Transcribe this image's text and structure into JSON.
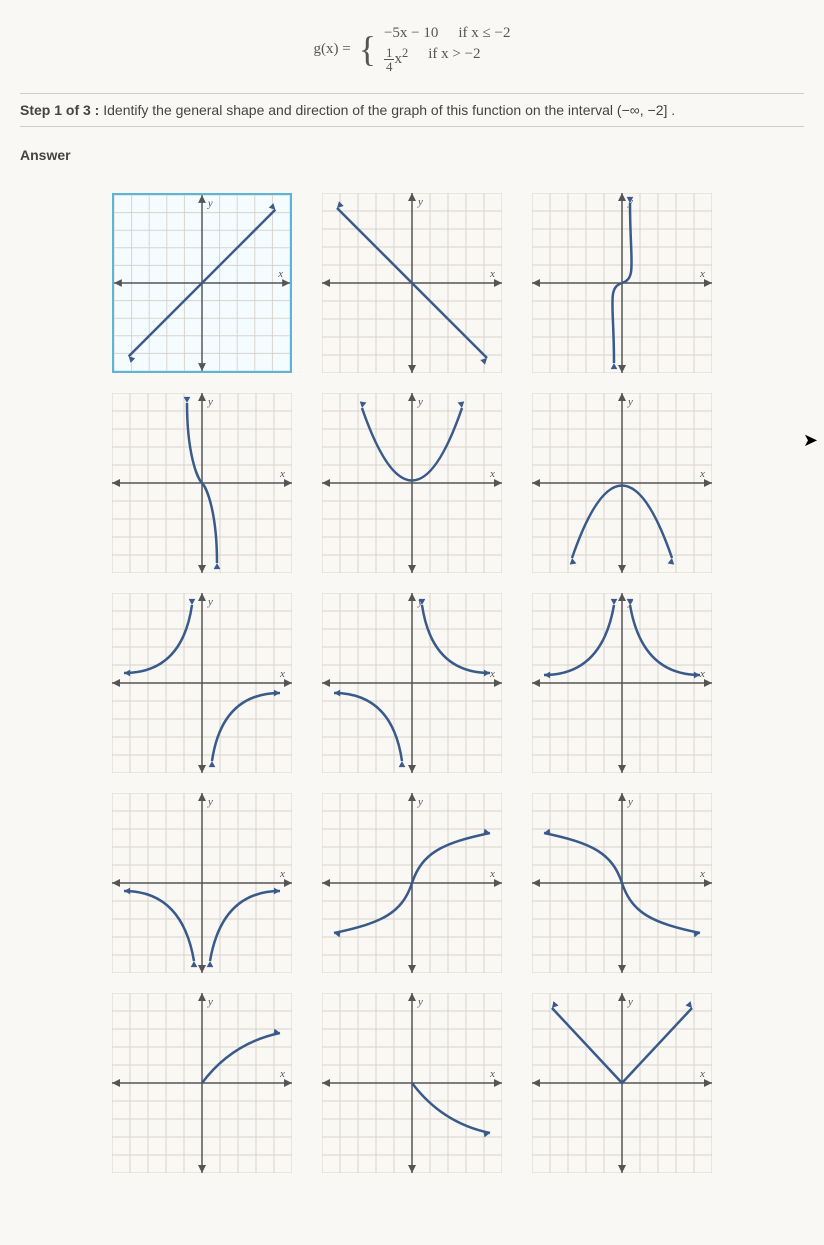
{
  "equation": {
    "lhs": "g(x) =",
    "piece1_expr": "−5x − 10",
    "piece1_cond": "if x ≤ −2",
    "piece2_frac_num": "1",
    "piece2_frac_den": "4",
    "piece2_rest": "x",
    "piece2_exp": "2",
    "piece2_cond": "if x > −2"
  },
  "step": {
    "label": "Step 1 of 3 :",
    "text": "Identify the general shape and direction of the graph of this function on the interval (−∞, −2] ."
  },
  "answer_label": "Answer",
  "axis_labels": {
    "x": "x",
    "y": "y"
  },
  "colors": {
    "background": "#faf8f5",
    "grid_line": "#d8d4cc",
    "axis": "#555",
    "curve": "#3a5a8a",
    "selected_border": "#5bb5d8",
    "text": "#444"
  },
  "grid_cfg": {
    "size": 180,
    "divisions": 10,
    "axis_center": 90
  },
  "graphs": [
    {
      "id": "g1",
      "selected": true,
      "type": "line_pos_slope"
    },
    {
      "id": "g2",
      "selected": false,
      "type": "line_neg_slope"
    },
    {
      "id": "g3",
      "selected": false,
      "type": "cubic_vertical"
    },
    {
      "id": "g4",
      "selected": false,
      "type": "cubic_neg"
    },
    {
      "id": "g5",
      "selected": false,
      "type": "parabola_up"
    },
    {
      "id": "g6",
      "selected": false,
      "type": "parabola_down"
    },
    {
      "id": "g7",
      "selected": false,
      "type": "reciprocal_q13"
    },
    {
      "id": "g8",
      "selected": false,
      "type": "reciprocal_q24"
    },
    {
      "id": "g9",
      "selected": false,
      "type": "one_over_x2_up"
    },
    {
      "id": "g10",
      "selected": false,
      "type": "one_over_x2_down"
    },
    {
      "id": "g11",
      "selected": false,
      "type": "cube_root"
    },
    {
      "id": "g12",
      "selected": false,
      "type": "neg_cube_root"
    },
    {
      "id": "g13",
      "selected": false,
      "type": "sqrt"
    },
    {
      "id": "g14",
      "selected": false,
      "type": "neg_sqrt"
    },
    {
      "id": "g15",
      "selected": false,
      "type": "abs_value"
    }
  ]
}
